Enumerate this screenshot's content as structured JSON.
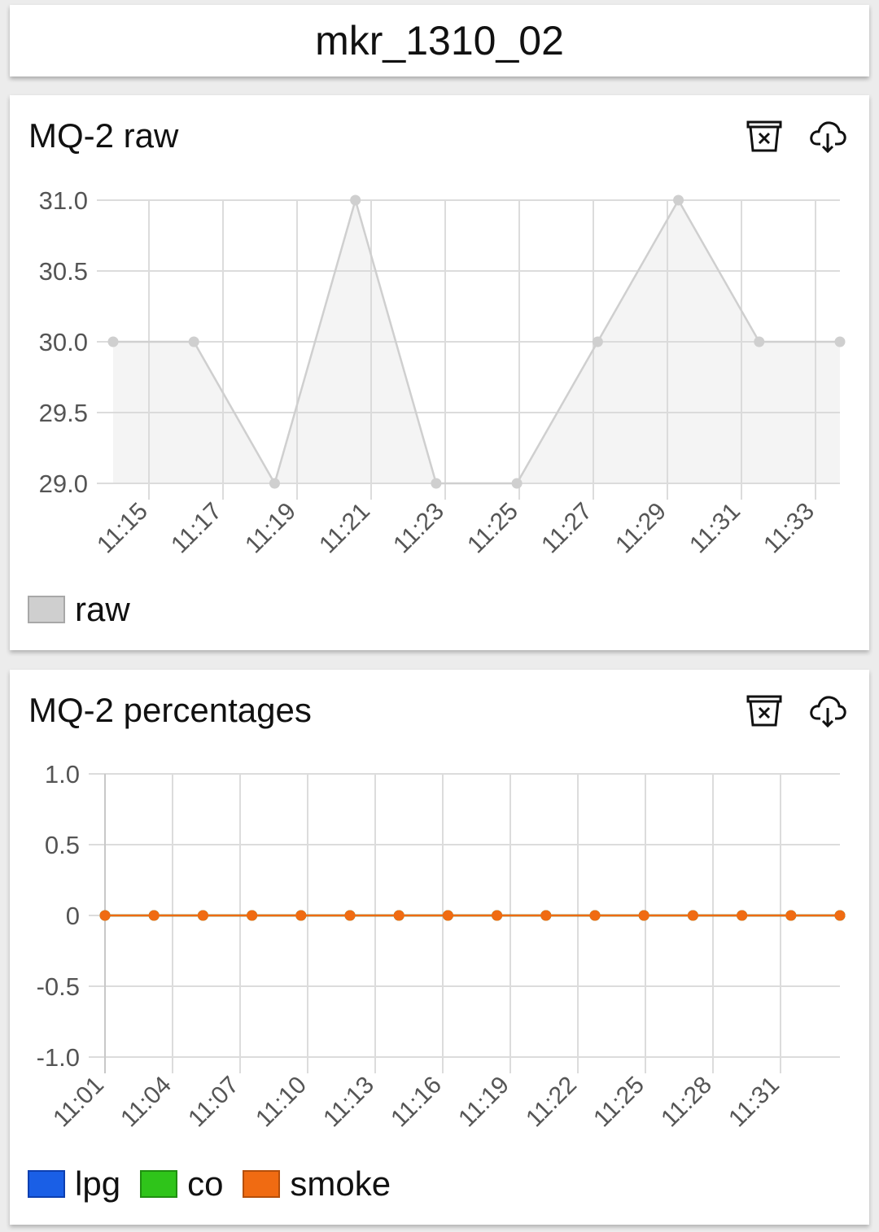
{
  "header": {
    "title": "mkr_1310_02"
  },
  "icons": {
    "clear": "clear-data-icon",
    "download": "cloud-download-icon"
  },
  "cards": [
    {
      "title": "MQ-2 raw",
      "legend": [
        {
          "label": "raw",
          "fill": "#cfcfcf",
          "border": "#a8a8a8"
        }
      ]
    },
    {
      "title": "MQ-2 percentages",
      "legend": [
        {
          "label": "lpg",
          "fill": "#1a5fe6",
          "border": "#0d3fb0"
        },
        {
          "label": "co",
          "fill": "#2fc41a",
          "border": "#1f8f10"
        },
        {
          "label": "smoke",
          "fill": "#f06b12",
          "border": "#b54f0a"
        }
      ]
    }
  ],
  "chart_data": [
    {
      "type": "area",
      "title": "MQ-2 raw",
      "series": [
        {
          "name": "raw",
          "color": "#cfcfcf",
          "values": [
            30,
            30,
            29,
            31,
            29,
            29,
            30,
            31,
            30,
            30
          ]
        }
      ],
      "ylim": [
        29.0,
        31.0
      ],
      "yticks": [
        "31.0",
        "30.5",
        "30.0",
        "29.5",
        "29.0"
      ],
      "xticks": [
        "11:15",
        "11:17",
        "11:19",
        "11:21",
        "11:23",
        "11:25",
        "11:27",
        "11:29",
        "11:31",
        "11:33"
      ],
      "grid": true,
      "legend": "bottom-left"
    },
    {
      "type": "line",
      "title": "MQ-2 percentages",
      "series": [
        {
          "name": "lpg",
          "color": "#1a5fe6",
          "values": [
            0,
            0,
            0,
            0,
            0,
            0,
            0,
            0,
            0,
            0,
            0,
            0,
            0,
            0,
            0,
            0
          ]
        },
        {
          "name": "co",
          "color": "#2fc41a",
          "values": [
            0,
            0,
            0,
            0,
            0,
            0,
            0,
            0,
            0,
            0,
            0,
            0,
            0,
            0,
            0,
            0
          ]
        },
        {
          "name": "smoke",
          "color": "#f06b12",
          "values": [
            0,
            0,
            0,
            0,
            0,
            0,
            0,
            0,
            0,
            0,
            0,
            0,
            0,
            0,
            0,
            0
          ]
        }
      ],
      "ylim": [
        -1.0,
        1.0
      ],
      "yticks": [
        "1.0",
        "0.5",
        "0",
        "-0.5",
        "-1.0"
      ],
      "xticks": [
        "11:01",
        "11:04",
        "11:07",
        "11:10",
        "11:13",
        "11:16",
        "11:19",
        "11:22",
        "11:25",
        "11:28",
        "11:31"
      ],
      "grid": true,
      "legend": "bottom-left"
    }
  ]
}
